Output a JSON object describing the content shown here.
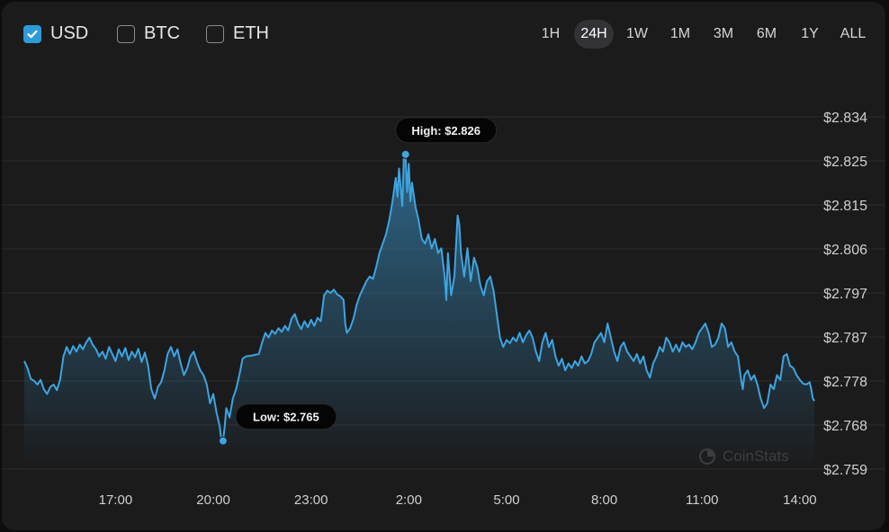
{
  "currencies": [
    {
      "label": "USD",
      "checked": true
    },
    {
      "label": "BTC",
      "checked": false
    },
    {
      "label": "ETH",
      "checked": false
    }
  ],
  "ranges": [
    "1H",
    "24H",
    "1W",
    "1M",
    "3M",
    "6M",
    "1Y",
    "ALL"
  ],
  "active_range": "24H",
  "watermark": "CoinStats",
  "colors": {
    "line": "#3ea4e0",
    "accent": "#2d9bd8",
    "grid": "#2b2b2d",
    "label": "#cfcfcf"
  },
  "chart_data": {
    "type": "area",
    "ylim": [
      2.759,
      2.834
    ],
    "y_ticks": [
      "$2.834",
      "$2.825",
      "$2.815",
      "$2.806",
      "$2.797",
      "$2.787",
      "$2.778",
      "$2.768",
      "$2.759"
    ],
    "x_ticks": [
      {
        "label": "17:00",
        "hour": 17
      },
      {
        "label": "20:00",
        "hour": 20
      },
      {
        "label": "23:00",
        "hour": 23
      },
      {
        "label": "2:00",
        "hour": 26
      },
      {
        "label": "5:00",
        "hour": 29
      },
      {
        "label": "8:00",
        "hour": 32
      },
      {
        "label": "11:00",
        "hour": 35
      },
      {
        "label": "14:00",
        "hour": 38
      }
    ],
    "x_range_hours": [
      14.2,
      38.5
    ],
    "grid": true,
    "annotations": {
      "high": {
        "label": "High: $2.826",
        "value": 2.826,
        "hour": 25.9
      },
      "low": {
        "label": "Low: $2.765",
        "value": 2.765,
        "hour": 20.3
      }
    },
    "series": [
      {
        "points": [
          [
            14.2,
            2.782
          ],
          [
            14.3,
            2.7805
          ],
          [
            14.4,
            2.7782
          ],
          [
            14.5,
            2.7778
          ],
          [
            14.6,
            2.777
          ],
          [
            14.7,
            2.778
          ],
          [
            14.8,
            2.776
          ],
          [
            14.9,
            2.775
          ],
          [
            15.0,
            2.7765
          ],
          [
            15.1,
            2.777
          ],
          [
            15.2,
            2.7758
          ],
          [
            15.3,
            2.778
          ],
          [
            15.4,
            2.783
          ],
          [
            15.5,
            2.785
          ],
          [
            15.6,
            2.7835
          ],
          [
            15.7,
            2.7852
          ],
          [
            15.8,
            2.784
          ],
          [
            15.9,
            2.7855
          ],
          [
            16.0,
            2.7845
          ],
          [
            16.1,
            2.786
          ],
          [
            16.2,
            2.787
          ],
          [
            16.3,
            2.7855
          ],
          [
            16.4,
            2.7845
          ],
          [
            16.5,
            2.783
          ],
          [
            16.6,
            2.784
          ],
          [
            16.7,
            2.7825
          ],
          [
            16.8,
            2.785
          ],
          [
            16.9,
            2.7835
          ],
          [
            17.0,
            2.782
          ],
          [
            17.1,
            2.7845
          ],
          [
            17.2,
            2.783
          ],
          [
            17.3,
            2.7848
          ],
          [
            17.4,
            2.7822
          ],
          [
            17.5,
            2.784
          ],
          [
            17.6,
            2.7828
          ],
          [
            17.7,
            2.7846
          ],
          [
            17.8,
            2.7818
          ],
          [
            17.9,
            2.7838
          ],
          [
            18.0,
            2.781
          ],
          [
            18.1,
            2.776
          ],
          [
            18.2,
            2.774
          ],
          [
            18.3,
            2.7765
          ],
          [
            18.4,
            2.7775
          ],
          [
            18.5,
            2.78
          ],
          [
            18.6,
            2.7835
          ],
          [
            18.7,
            2.785
          ],
          [
            18.8,
            2.783
          ],
          [
            18.9,
            2.7845
          ],
          [
            19.0,
            2.7815
          ],
          [
            19.1,
            2.779
          ],
          [
            19.2,
            2.7805
          ],
          [
            19.3,
            2.783
          ],
          [
            19.4,
            2.784
          ],
          [
            19.5,
            2.7818
          ],
          [
            19.6,
            2.78
          ],
          [
            19.7,
            2.779
          ],
          [
            19.8,
            2.777
          ],
          [
            19.9,
            2.773
          ],
          [
            20.0,
            2.775
          ],
          [
            20.1,
            2.771
          ],
          [
            20.2,
            2.768
          ],
          [
            20.25,
            2.765
          ],
          [
            20.3,
            2.765
          ],
          [
            20.35,
            2.768
          ],
          [
            20.4,
            2.772
          ],
          [
            20.5,
            2.77
          ],
          [
            20.6,
            2.774
          ],
          [
            20.7,
            2.776
          ],
          [
            20.8,
            2.779
          ],
          [
            20.9,
            2.7825
          ],
          [
            21.0,
            2.783
          ],
          [
            21.2,
            2.7832
          ],
          [
            21.4,
            2.7835
          ],
          [
            21.5,
            2.786
          ],
          [
            21.6,
            2.788
          ],
          [
            21.7,
            2.787
          ],
          [
            21.8,
            2.7885
          ],
          [
            21.9,
            2.7878
          ],
          [
            22.0,
            2.789
          ],
          [
            22.1,
            2.7882
          ],
          [
            22.2,
            2.7895
          ],
          [
            22.3,
            2.7885
          ],
          [
            22.4,
            2.791
          ],
          [
            22.5,
            2.792
          ],
          [
            22.6,
            2.79
          ],
          [
            22.7,
            2.7888
          ],
          [
            22.8,
            2.7905
          ],
          [
            22.9,
            2.7892
          ],
          [
            23.0,
            2.7908
          ],
          [
            23.1,
            2.7895
          ],
          [
            23.2,
            2.7912
          ],
          [
            23.3,
            2.7905
          ],
          [
            23.4,
            2.796
          ],
          [
            23.5,
            2.797
          ],
          [
            23.6,
            2.7965
          ],
          [
            23.7,
            2.7972
          ],
          [
            23.8,
            2.7962
          ],
          [
            23.9,
            2.7958
          ],
          [
            24.0,
            2.795
          ],
          [
            24.05,
            2.79
          ],
          [
            24.1,
            2.788
          ],
          [
            24.2,
            2.789
          ],
          [
            24.3,
            2.791
          ],
          [
            24.4,
            2.794
          ],
          [
            24.5,
            2.796
          ],
          [
            24.6,
            2.7975
          ],
          [
            24.7,
            2.799
          ],
          [
            24.8,
            2.8
          ],
          [
            24.9,
            2.7995
          ],
          [
            25.0,
            2.802
          ],
          [
            25.1,
            2.805
          ],
          [
            25.2,
            2.807
          ],
          [
            25.3,
            2.809
          ],
          [
            25.4,
            2.812
          ],
          [
            25.5,
            2.816
          ],
          [
            25.6,
            2.821
          ],
          [
            25.65,
            2.817
          ],
          [
            25.7,
            2.823
          ],
          [
            25.8,
            2.815
          ],
          [
            25.85,
            2.826
          ],
          [
            25.9,
            2.8255
          ],
          [
            25.95,
            2.818
          ],
          [
            26.0,
            2.824
          ],
          [
            26.05,
            2.816
          ],
          [
            26.1,
            2.82
          ],
          [
            26.2,
            2.815
          ],
          [
            26.3,
            2.812
          ],
          [
            26.4,
            2.808
          ],
          [
            26.5,
            2.807
          ],
          [
            26.6,
            2.809
          ],
          [
            26.7,
            2.806
          ],
          [
            26.8,
            2.808
          ],
          [
            26.9,
            2.805
          ],
          [
            27.0,
            2.806
          ],
          [
            27.1,
            2.8
          ],
          [
            27.15,
            2.795
          ],
          [
            27.2,
            2.805
          ],
          [
            27.3,
            2.796
          ],
          [
            27.4,
            2.8
          ],
          [
            27.5,
            2.813
          ],
          [
            27.55,
            2.811
          ],
          [
            27.6,
            2.805
          ],
          [
            27.7,
            2.8
          ],
          [
            27.8,
            2.806
          ],
          [
            27.9,
            2.799
          ],
          [
            28.0,
            2.804
          ],
          [
            28.1,
            2.802
          ],
          [
            28.2,
            2.798
          ],
          [
            28.3,
            2.796
          ],
          [
            28.4,
            2.799
          ],
          [
            28.5,
            2.8
          ],
          [
            28.6,
            2.797
          ],
          [
            28.7,
            2.792
          ],
          [
            28.8,
            2.787
          ],
          [
            28.9,
            2.785
          ],
          [
            29.0,
            2.7865
          ],
          [
            29.1,
            2.7858
          ],
          [
            29.2,
            2.787
          ],
          [
            29.3,
            2.7862
          ],
          [
            29.4,
            2.788
          ],
          [
            29.5,
            2.786
          ],
          [
            29.6,
            2.7875
          ],
          [
            29.7,
            2.7885
          ],
          [
            29.8,
            2.787
          ],
          [
            29.9,
            2.784
          ],
          [
            30.0,
            2.782
          ],
          [
            30.1,
            2.786
          ],
          [
            30.2,
            2.788
          ],
          [
            30.3,
            2.785
          ],
          [
            30.4,
            2.7865
          ],
          [
            30.5,
            2.783
          ],
          [
            30.6,
            2.781
          ],
          [
            30.7,
            2.7825
          ],
          [
            30.8,
            2.78
          ],
          [
            30.9,
            2.7815
          ],
          [
            31.0,
            2.7805
          ],
          [
            31.1,
            2.782
          ],
          [
            31.2,
            2.781
          ],
          [
            31.3,
            2.783
          ],
          [
            31.4,
            2.7815
          ],
          [
            31.5,
            2.782
          ],
          [
            31.6,
            2.7835
          ],
          [
            31.7,
            2.786
          ],
          [
            31.8,
            2.787
          ],
          [
            31.9,
            2.788
          ],
          [
            32.0,
            2.786
          ],
          [
            32.1,
            2.79
          ],
          [
            32.2,
            2.787
          ],
          [
            32.3,
            2.784
          ],
          [
            32.4,
            2.782
          ],
          [
            32.5,
            2.785
          ],
          [
            32.6,
            2.786
          ],
          [
            32.7,
            2.784
          ],
          [
            32.8,
            2.783
          ],
          [
            32.9,
            2.782
          ],
          [
            33.0,
            2.7835
          ],
          [
            33.1,
            2.7815
          ],
          [
            33.2,
            2.783
          ],
          [
            33.3,
            2.78
          ],
          [
            33.4,
            2.7785
          ],
          [
            33.5,
            2.7815
          ],
          [
            33.6,
            2.783
          ],
          [
            33.7,
            2.785
          ],
          [
            33.8,
            2.784
          ],
          [
            33.9,
            2.787
          ],
          [
            34.0,
            2.786
          ],
          [
            34.1,
            2.784
          ],
          [
            34.2,
            2.7855
          ],
          [
            34.3,
            2.784
          ],
          [
            34.4,
            2.786
          ],
          [
            34.5,
            2.785
          ],
          [
            34.6,
            2.7855
          ],
          [
            34.7,
            2.7845
          ],
          [
            34.8,
            2.786
          ],
          [
            34.9,
            2.788
          ],
          [
            35.0,
            2.789
          ],
          [
            35.1,
            2.79
          ],
          [
            35.2,
            2.788
          ],
          [
            35.3,
            2.785
          ],
          [
            35.4,
            2.7855
          ],
          [
            35.5,
            2.787
          ],
          [
            35.6,
            2.79
          ],
          [
            35.7,
            2.789
          ],
          [
            35.8,
            2.785
          ],
          [
            35.9,
            2.786
          ],
          [
            36.0,
            2.784
          ],
          [
            36.1,
            2.783
          ],
          [
            36.2,
            2.778
          ],
          [
            36.25,
            2.776
          ],
          [
            36.3,
            2.779
          ],
          [
            36.4,
            2.78
          ],
          [
            36.5,
            2.778
          ],
          [
            36.6,
            2.779
          ],
          [
            36.7,
            2.777
          ],
          [
            36.8,
            2.774
          ],
          [
            36.9,
            2.772
          ],
          [
            37.0,
            2.773
          ],
          [
            37.1,
            2.777
          ],
          [
            37.2,
            2.776
          ],
          [
            37.3,
            2.779
          ],
          [
            37.4,
            2.778
          ],
          [
            37.5,
            2.783
          ],
          [
            37.6,
            2.7835
          ],
          [
            37.7,
            2.781
          ],
          [
            37.8,
            2.7805
          ],
          [
            37.9,
            2.779
          ],
          [
            38.0,
            2.778
          ],
          [
            38.1,
            2.7772
          ],
          [
            38.2,
            2.777
          ],
          [
            38.3,
            2.7775
          ],
          [
            38.35,
            2.776
          ],
          [
            38.4,
            2.774
          ],
          [
            38.45,
            2.7735
          ]
        ]
      }
    ]
  }
}
